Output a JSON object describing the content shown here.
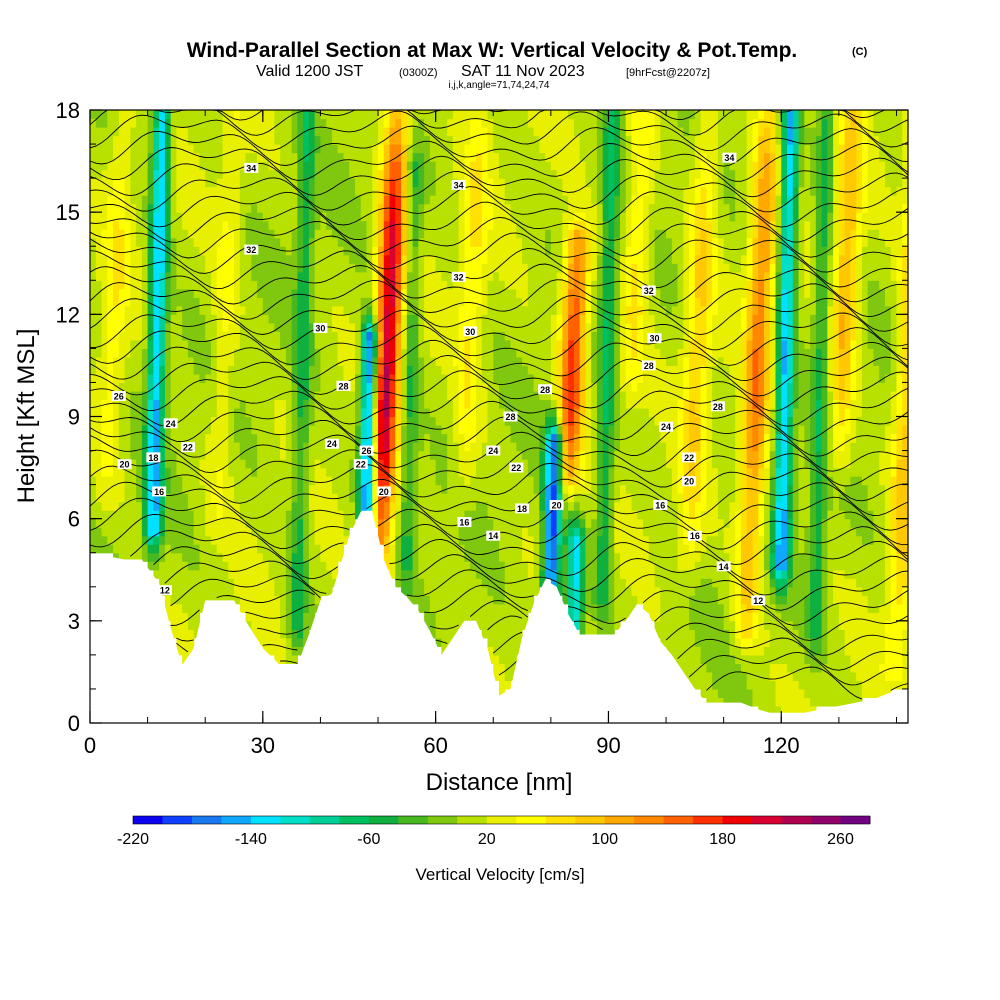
{
  "title": {
    "main": "Wind-Parallel Section at Max W: Vertical Velocity & Pot.Temp.",
    "copyright": "(C)",
    "valid_a": "Valid 1200 JST",
    "valid_b": "(0300Z)",
    "valid_c": "SAT 11 Nov 2023",
    "valid_d": "[9hrFcst@2207z]",
    "indices": "i,j,k,angle=71,74,24,74"
  },
  "chart_data": {
    "type": "heatmap",
    "xlabel": "Distance [nm]",
    "ylabel": "Height [Kft MSL]",
    "xlim": [
      0,
      142
    ],
    "ylim": [
      0,
      18
    ],
    "x_ticks": [
      0,
      30,
      60,
      90,
      120
    ],
    "y_ticks": [
      0,
      3,
      6,
      9,
      12,
      15,
      18
    ],
    "colorbar": {
      "title": "Vertical Velocity [cm/s]",
      "tick_labels": [
        "-220",
        "-140",
        "-60",
        "20",
        "100",
        "180",
        "260"
      ],
      "tick_values": [
        -220,
        -140,
        -60,
        20,
        100,
        180,
        260
      ],
      "range": [
        -220,
        280
      ],
      "colors": [
        "#0b00f0",
        "#1040ff",
        "#1878f0",
        "#10a8ff",
        "#00e0ff",
        "#00e0c8",
        "#00d098",
        "#00c060",
        "#10b040",
        "#48b820",
        "#80c810",
        "#b8e000",
        "#e8f000",
        "#ffff00",
        "#ffe000",
        "#ffc800",
        "#ffa800",
        "#ff8800",
        "#ff6000",
        "#ff3000",
        "#f00000",
        "#d80030",
        "#b00050",
        "#900068",
        "#700080"
      ]
    },
    "terrain": [
      [
        0,
        4.9
      ],
      [
        3,
        4.9
      ],
      [
        6,
        4.8
      ],
      [
        9,
        4.8
      ],
      [
        12,
        4.1
      ],
      [
        14,
        2.8
      ],
      [
        16,
        1.7
      ],
      [
        18,
        2.2
      ],
      [
        20,
        3.6
      ],
      [
        22,
        3.6
      ],
      [
        25,
        3.6
      ],
      [
        27,
        3.0
      ],
      [
        30,
        2.2
      ],
      [
        33,
        1.7
      ],
      [
        36,
        1.7
      ],
      [
        38,
        2.6
      ],
      [
        40,
        3.6
      ],
      [
        42,
        3.8
      ],
      [
        45,
        5.5
      ],
      [
        47,
        6.2
      ],
      [
        49,
        6.2
      ],
      [
        51,
        4.8
      ],
      [
        53,
        4.0
      ],
      [
        55,
        3.7
      ],
      [
        57,
        3.3
      ],
      [
        59,
        2.7
      ],
      [
        61,
        2.0
      ],
      [
        63,
        2.5
      ],
      [
        65,
        3.0
      ],
      [
        67,
        3.0
      ],
      [
        69,
        2.2
      ],
      [
        71,
        0.8
      ],
      [
        73,
        1.0
      ],
      [
        75,
        2.5
      ],
      [
        77,
        3.5
      ],
      [
        79,
        4.2
      ],
      [
        81,
        4.0
      ],
      [
        83,
        3.2
      ],
      [
        85,
        2.6
      ],
      [
        88,
        2.6
      ],
      [
        91,
        2.6
      ],
      [
        93,
        3.0
      ],
      [
        95,
        3.5
      ],
      [
        97,
        3.2
      ],
      [
        99,
        2.4
      ],
      [
        101,
        2.0
      ],
      [
        103,
        1.5
      ],
      [
        105,
        1.0
      ],
      [
        107,
        0.6
      ],
      [
        110,
        0.6
      ],
      [
        113,
        0.6
      ],
      [
        116,
        0.4
      ],
      [
        118,
        0.3
      ],
      [
        121,
        0.3
      ],
      [
        124,
        0.3
      ],
      [
        127,
        0.4
      ],
      [
        130,
        0.5
      ],
      [
        133,
        0.6
      ],
      [
        136,
        0.7
      ],
      [
        139,
        0.9
      ],
      [
        142,
        1.0
      ]
    ],
    "updraft_bands": [
      [
        50,
        4.5,
        17.5,
        210
      ],
      [
        83,
        7.5,
        14,
        170
      ],
      [
        114,
        3,
        18,
        120
      ],
      [
        140,
        2,
        18,
        80
      ],
      [
        3,
        7,
        18,
        40
      ],
      [
        22,
        6,
        18,
        35
      ],
      [
        65,
        7,
        18,
        50
      ],
      [
        94,
        10,
        18,
        60
      ],
      [
        104,
        5,
        18,
        70
      ],
      [
        130,
        8,
        18,
        90
      ]
    ],
    "downdraft_bands": [
      [
        11,
        6,
        18,
        -150
      ],
      [
        48,
        5.5,
        11,
        -210
      ],
      [
        80,
        4,
        8,
        -200
      ],
      [
        84,
        2.6,
        5,
        -140
      ],
      [
        120,
        5,
        18,
        -150
      ],
      [
        36,
        3,
        18,
        -60
      ],
      [
        55,
        5,
        16,
        -55
      ],
      [
        89,
        4,
        18,
        -70
      ],
      [
        126,
        3,
        18,
        -60
      ]
    ],
    "theta_labels": [
      {
        "text": "34",
        "x": 28,
        "y": 16.3
      },
      {
        "text": "34",
        "x": 64,
        "y": 15.8
      },
      {
        "text": "34",
        "x": 111,
        "y": 16.6
      },
      {
        "text": "32",
        "x": 28,
        "y": 13.9
      },
      {
        "text": "32",
        "x": 64,
        "y": 13.1
      },
      {
        "text": "32",
        "x": 97,
        "y": 12.7
      },
      {
        "text": "30",
        "x": 40,
        "y": 11.6
      },
      {
        "text": "30",
        "x": 66,
        "y": 11.5
      },
      {
        "text": "30",
        "x": 98,
        "y": 11.3
      },
      {
        "text": "28",
        "x": 44,
        "y": 9.9
      },
      {
        "text": "28",
        "x": 79,
        "y": 9.8
      },
      {
        "text": "28",
        "x": 97,
        "y": 10.5
      },
      {
        "text": "28",
        "x": 73,
        "y": 9.0
      },
      {
        "text": "28",
        "x": 109,
        "y": 9.3
      },
      {
        "text": "26",
        "x": 5,
        "y": 9.6
      },
      {
        "text": "26",
        "x": 48,
        "y": 8.0
      },
      {
        "text": "24",
        "x": 14,
        "y": 8.8
      },
      {
        "text": "24",
        "x": 42,
        "y": 8.2
      },
      {
        "text": "24",
        "x": 70,
        "y": 8.0
      },
      {
        "text": "24",
        "x": 100,
        "y": 8.7
      },
      {
        "text": "22",
        "x": 17,
        "y": 8.1
      },
      {
        "text": "22",
        "x": 47,
        "y": 7.6
      },
      {
        "text": "22",
        "x": 74,
        "y": 7.5
      },
      {
        "text": "22",
        "x": 104,
        "y": 7.8
      },
      {
        "text": "20",
        "x": 6,
        "y": 7.6
      },
      {
        "text": "20",
        "x": 51,
        "y": 6.8
      },
      {
        "text": "20",
        "x": 81,
        "y": 6.4
      },
      {
        "text": "20",
        "x": 104,
        "y": 7.1
      },
      {
        "text": "18",
        "x": 11,
        "y": 7.8
      },
      {
        "text": "18",
        "x": 75,
        "y": 6.3
      },
      {
        "text": "16",
        "x": 12,
        "y": 6.8
      },
      {
        "text": "16",
        "x": 65,
        "y": 5.9
      },
      {
        "text": "16",
        "x": 99,
        "y": 6.4
      },
      {
        "text": "16",
        "x": 105,
        "y": 5.5
      },
      {
        "text": "14",
        "x": 70,
        "y": 5.5
      },
      {
        "text": "14",
        "x": 110,
        "y": 4.6
      },
      {
        "text": "12",
        "x": 13,
        "y": 3.9
      },
      {
        "text": "12",
        "x": 116,
        "y": 3.6
      }
    ]
  }
}
